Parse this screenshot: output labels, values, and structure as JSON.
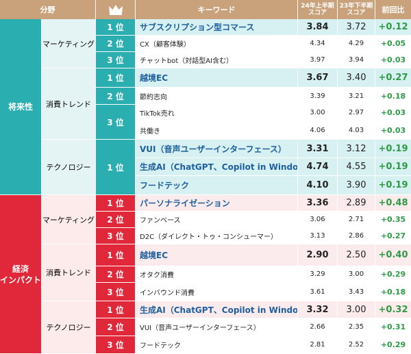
{
  "header": {
    "category": "分野",
    "keyword": "キーワード",
    "h1_score_line1": "24年上半期",
    "h1_score_line2": "スコア",
    "h2_score_line1": "23年下半期",
    "h2_score_line2": "スコア",
    "change": "前回比",
    "crown_icon": "crown-icon"
  },
  "colors": {
    "header": "#c9a27c",
    "future_cat": "#2aaeb0",
    "future_rank": "#2aaeb0",
    "future_sub": "#e4f4f4",
    "future_hl": "#d7f0f1",
    "impact_cat": "#e0283a",
    "impact_rank": "#e0283a",
    "impact_sub": "#fdeaea",
    "impact_hl": "#fcebec",
    "keyword_top": "#1d5f9e",
    "diff": "#2e9a45"
  },
  "categories": [
    {
      "label_line1": "将来性",
      "label_line2": ""
    },
    {
      "label_line1": "経済",
      "label_line2": "インパクト"
    }
  ],
  "subcategories": [
    "マーケティング",
    "消費トレンド",
    "テクノロジー",
    "マーケティング",
    "消費トレンド",
    "テクノロジー"
  ],
  "ranks": [
    "1 位",
    "2 位",
    "3 位",
    "1 位",
    "2 位",
    "3 位",
    "1 位",
    "1 位",
    "2 位",
    "3 位",
    "1 位",
    "2 位",
    "3 位",
    "1 位",
    "2 位",
    "3 位"
  ],
  "rows": [
    {
      "keyword": "サブスクリプション型コマース",
      "s1": "3.84",
      "s2": "3.72",
      "diff": "+0.12"
    },
    {
      "keyword": "CX（顧客体験）",
      "s1": "4.34",
      "s2": "4.29",
      "diff": "+0.05"
    },
    {
      "keyword": "チャットbot（対話型AI含む）",
      "s1": "3.97",
      "s2": "3.94",
      "diff": "+0.03"
    },
    {
      "keyword": "越境EC",
      "s1": "3.67",
      "s2": "3.40",
      "diff": "+0.27"
    },
    {
      "keyword": "節約志向",
      "s1": "3.39",
      "s2": "3.21",
      "diff": "+0.18"
    },
    {
      "keyword": "TikTok売れ",
      "s1": "3.00",
      "s2": "2.97",
      "diff": "+0.03"
    },
    {
      "keyword": "共働き",
      "s1": "4.06",
      "s2": "4.03",
      "diff": "+0.03"
    },
    {
      "keyword": "VUI（音声ユーザーインターフェース）",
      "s1": "3.31",
      "s2": "3.12",
      "diff": "+0.19"
    },
    {
      "keyword": "生成AI（ChatGPT、Copilot in Windowsなど）",
      "s1": "4.74",
      "s2": "4.55",
      "diff": "+0.19"
    },
    {
      "keyword": "フードテック",
      "s1": "4.10",
      "s2": "3.90",
      "diff": "+0.19"
    },
    {
      "keyword": "パーソナライゼーション",
      "s1": "3.36",
      "s2": "2.89",
      "diff": "+0.48"
    },
    {
      "keyword": "ファンベース",
      "s1": "3.06",
      "s2": "2.71",
      "diff": "+0.35"
    },
    {
      "keyword": "D2C（ダイレクト・トゥ・コンシューマー）",
      "s1": "3.13",
      "s2": "2.86",
      "diff": "+0.27"
    },
    {
      "keyword": "越境EC",
      "s1": "2.90",
      "s2": "2.50",
      "diff": "+0.40"
    },
    {
      "keyword": "オタク消費",
      "s1": "3.29",
      "s2": "3.00",
      "diff": "+0.29"
    },
    {
      "keyword": "インバウンド消費",
      "s1": "3.61",
      "s2": "3.43",
      "diff": "+0.18"
    },
    {
      "keyword": "生成AI（ChatGPT、Copilot in Windowsなど）",
      "s1": "3.32",
      "s2": "3.00",
      "diff": "+0.32"
    },
    {
      "keyword": "VUI（音声ユーザーインターフェース）",
      "s1": "2.66",
      "s2": "2.35",
      "diff": "+0.31"
    },
    {
      "keyword": "フードテック",
      "s1": "2.81",
      "s2": "2.52",
      "diff": "+0.29"
    }
  ]
}
